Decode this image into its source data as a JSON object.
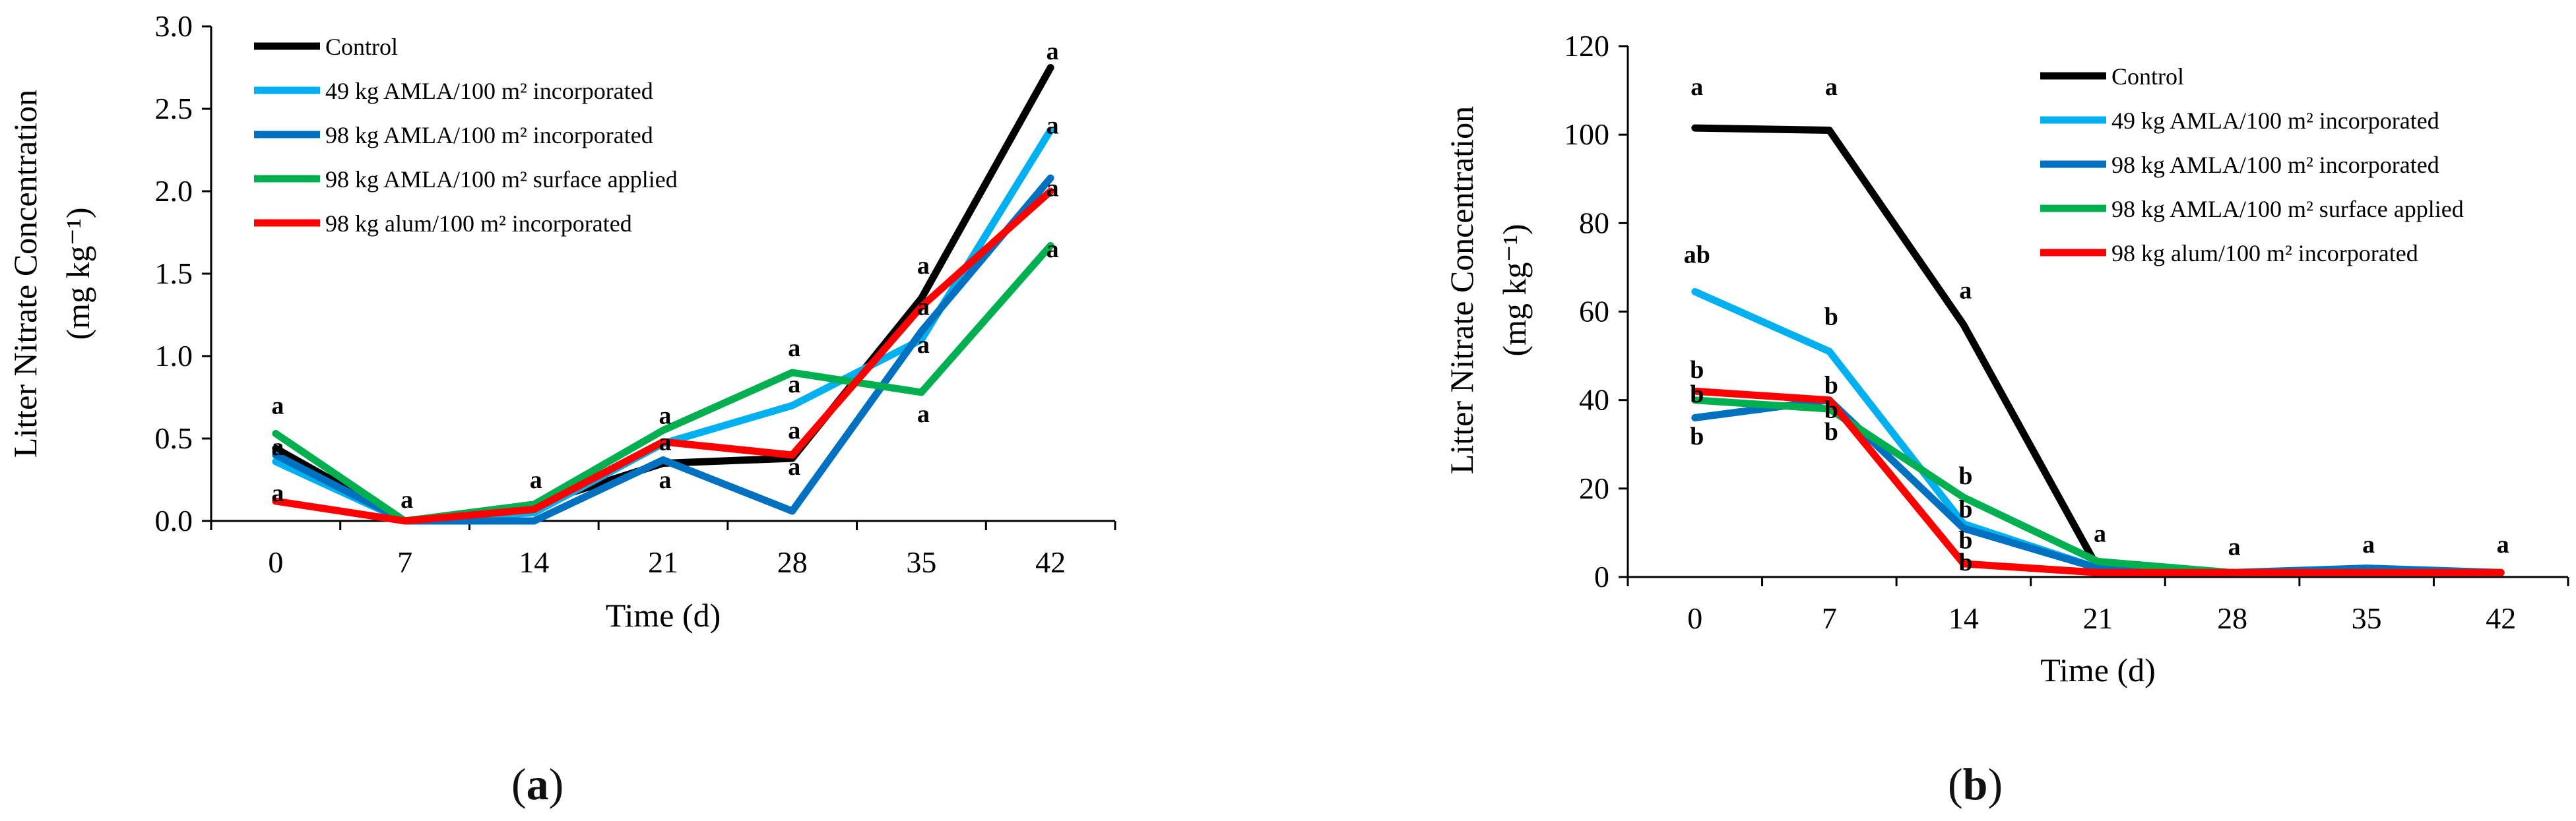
{
  "chart_data": [
    {
      "id": "a",
      "type": "line",
      "panel_label": "a",
      "panel_label_prefix": "(",
      "panel_label_suffix": ")",
      "xlabel": "Time (d)",
      "ylabel_line1": "Litter Nitrate Concentration",
      "ylabel_line2": "(mg kg⁻¹)",
      "categories": [
        "0",
        "7",
        "14",
        "21",
        "28",
        "35",
        "42"
      ],
      "ylim": [
        0,
        3.0
      ],
      "yticks": [
        "0.0",
        "0.5",
        "1.0",
        "1.5",
        "2.0",
        "2.5",
        "3.0"
      ],
      "ytick_values": [
        0,
        0.5,
        1.0,
        1.5,
        2.0,
        2.5,
        3.0
      ],
      "legend_position": "top-left",
      "series": [
        {
          "name": "Control",
          "color": "#000000",
          "values": [
            0.44,
            0.0,
            0.1,
            0.35,
            0.38,
            1.35,
            2.75
          ]
        },
        {
          "name": "49 kg AMLA/100 m² incorporated",
          "color": "#00B0F0",
          "values": [
            0.36,
            0.0,
            0.05,
            0.47,
            0.7,
            1.1,
            2.37
          ]
        },
        {
          "name": "98 kg AMLA/100 m² incorporated",
          "color": "#0070C0",
          "values": [
            0.4,
            0.0,
            0.0,
            0.37,
            0.06,
            1.15,
            2.08
          ]
        },
        {
          "name": "98 kg AMLA/100 m² surface applied",
          "color": "#00B050",
          "values": [
            0.53,
            0.0,
            0.1,
            0.55,
            0.9,
            0.78,
            1.67
          ]
        },
        {
          "name": "98 kg alum/100 m² incorporated",
          "color": "#FF0000",
          "values": [
            0.12,
            0.0,
            0.07,
            0.48,
            0.4,
            1.3,
            2.0
          ]
        }
      ],
      "annotations": [
        {
          "text": "a",
          "x": 0,
          "y": 0.65
        },
        {
          "text": "a",
          "x": 0,
          "y": 0.4
        },
        {
          "text": "a",
          "x": 0,
          "y": 0.12
        },
        {
          "text": "a",
          "x": 1,
          "y": 0.08
        },
        {
          "text": "a",
          "x": 2,
          "y": 0.2
        },
        {
          "text": "a",
          "x": 3,
          "y": 0.59
        },
        {
          "text": "a",
          "x": 3,
          "y": 0.43
        },
        {
          "text": "a",
          "x": 3,
          "y": 0.2
        },
        {
          "text": "a",
          "x": 4,
          "y": 1.0
        },
        {
          "text": "a",
          "x": 4,
          "y": 0.78
        },
        {
          "text": "a",
          "x": 4,
          "y": 0.5
        },
        {
          "text": "a",
          "x": 4,
          "y": 0.28
        },
        {
          "text": "a",
          "x": 5,
          "y": 1.5
        },
        {
          "text": "a",
          "x": 5,
          "y": 1.25
        },
        {
          "text": "a",
          "x": 5,
          "y": 1.02
        },
        {
          "text": "a",
          "x": 5,
          "y": 0.6
        },
        {
          "text": "a",
          "x": 6,
          "y": 2.8
        },
        {
          "text": "a",
          "x": 6,
          "y": 2.35
        },
        {
          "text": "a",
          "x": 6,
          "y": 1.97
        },
        {
          "text": "a",
          "x": 6,
          "y": 1.6
        }
      ]
    },
    {
      "id": "b",
      "type": "line",
      "panel_label": "b",
      "panel_label_prefix": "(",
      "panel_label_suffix": ")",
      "xlabel": "Time (d)",
      "ylabel_line1": "Litter Nitrate Concentration",
      "ylabel_line2": "(mg kg⁻¹)",
      "categories": [
        "0",
        "7",
        "14",
        "21",
        "28",
        "35",
        "42"
      ],
      "ylim": [
        0,
        120
      ],
      "yticks": [
        "0",
        "20",
        "40",
        "60",
        "80",
        "100",
        "120"
      ],
      "ytick_values": [
        0,
        20,
        40,
        60,
        80,
        100,
        120
      ],
      "legend_position": "top-right",
      "series": [
        {
          "name": "Control",
          "color": "#000000",
          "values": [
            101.5,
            101.0,
            57.0,
            2.0,
            1.0,
            1.0,
            1.0
          ]
        },
        {
          "name": "49 kg AMLA/100 m² incorporated",
          "color": "#00B0F0",
          "values": [
            64.5,
            51.0,
            12.0,
            2.0,
            1.0,
            1.0,
            1.0
          ]
        },
        {
          "name": "98 kg AMLA/100 m² incorporated",
          "color": "#0070C0",
          "values": [
            36.0,
            40.0,
            11.0,
            2.0,
            1.0,
            2.0,
            1.0
          ]
        },
        {
          "name": "98 kg AMLA/100 m² surface applied",
          "color": "#00B050",
          "values": [
            40.0,
            38.0,
            18.0,
            3.5,
            1.0,
            1.0,
            1.0
          ]
        },
        {
          "name": "98 kg alum/100 m² incorporated",
          "color": "#FF0000",
          "values": [
            42.0,
            40.0,
            3.0,
            1.0,
            1.0,
            1.0,
            1.0
          ]
        }
      ],
      "annotations": [
        {
          "text": "a",
          "x": 0,
          "y": 109
        },
        {
          "text": "ab",
          "x": 0,
          "y": 71
        },
        {
          "text": "b",
          "x": 0,
          "y": 45
        },
        {
          "text": "b",
          "x": 0,
          "y": 39.5
        },
        {
          "text": "b",
          "x": 0,
          "y": 30
        },
        {
          "text": "a",
          "x": 1,
          "y": 109
        },
        {
          "text": "b",
          "x": 1,
          "y": 57
        },
        {
          "text": "b",
          "x": 1,
          "y": 41.5
        },
        {
          "text": "b",
          "x": 1,
          "y": 36
        },
        {
          "text": "b",
          "x": 1,
          "y": 31
        },
        {
          "text": "a",
          "x": 2,
          "y": 63
        },
        {
          "text": "b",
          "x": 2,
          "y": 21
        },
        {
          "text": "b",
          "x": 2,
          "y": 13.5
        },
        {
          "text": "b",
          "x": 2,
          "y": 6.5
        },
        {
          "text": "b",
          "x": 2,
          "y": 1.5
        },
        {
          "text": "a",
          "x": 3,
          "y": 8
        },
        {
          "text": "a",
          "x": 4,
          "y": 5
        },
        {
          "text": "a",
          "x": 5,
          "y": 5.5
        },
        {
          "text": "a",
          "x": 6,
          "y": 5.5
        }
      ]
    }
  ]
}
